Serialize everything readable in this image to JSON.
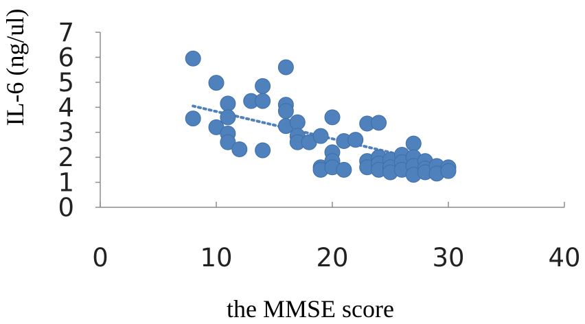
{
  "chart_data": {
    "type": "scatter",
    "title": "",
    "xlabel": "the MMSE score",
    "ylabel": "IL-6 (ng/ul)",
    "xlim": [
      0,
      40
    ],
    "ylim": [
      0,
      7
    ],
    "x_ticks": [
      "0",
      "10",
      "20",
      "30",
      "40"
    ],
    "y_ticks": [
      "0",
      "1",
      "2",
      "3",
      "4",
      "5",
      "6",
      "7"
    ],
    "grid": false,
    "legend": "none",
    "marker_color": "#4f81bd",
    "trendline": {
      "style": "dotted",
      "color": "#4f81bd",
      "from": [
        8,
        4.05
      ],
      "to": [
        30,
        1.65
      ]
    },
    "series": [
      {
        "points": [
          [
            8,
            5.95
          ],
          [
            8,
            3.55
          ],
          [
            10,
            4.98
          ],
          [
            10,
            3.2
          ],
          [
            11,
            4.15
          ],
          [
            11,
            3.6
          ],
          [
            11,
            2.95
          ],
          [
            11,
            2.6
          ],
          [
            12,
            2.32
          ],
          [
            13,
            4.25
          ],
          [
            14,
            4.85
          ],
          [
            14,
            4.25
          ],
          [
            14,
            2.28
          ],
          [
            16,
            5.6
          ],
          [
            16,
            4.1
          ],
          [
            16,
            3.85
          ],
          [
            16,
            3.25
          ],
          [
            17,
            3.4
          ],
          [
            17,
            2.85
          ],
          [
            17,
            2.6
          ],
          [
            18,
            2.6
          ],
          [
            19,
            2.85
          ],
          [
            19,
            1.6
          ],
          [
            19,
            1.5
          ],
          [
            20,
            3.6
          ],
          [
            20,
            2.2
          ],
          [
            20,
            1.85
          ],
          [
            20,
            1.6
          ],
          [
            21,
            2.65
          ],
          [
            21,
            1.5
          ],
          [
            22,
            2.7
          ],
          [
            23,
            3.35
          ],
          [
            23,
            1.85
          ],
          [
            23,
            1.6
          ],
          [
            24,
            3.38
          ],
          [
            24,
            2.0
          ],
          [
            24,
            1.75
          ],
          [
            24,
            1.5
          ],
          [
            25,
            1.9
          ],
          [
            25,
            1.6
          ],
          [
            25,
            1.4
          ],
          [
            26,
            2.1
          ],
          [
            26,
            1.8
          ],
          [
            26,
            1.5
          ],
          [
            27,
            2.55
          ],
          [
            27,
            2.0
          ],
          [
            27,
            1.65
          ],
          [
            27,
            1.3
          ],
          [
            28,
            1.85
          ],
          [
            28,
            1.55
          ],
          [
            28,
            1.4
          ],
          [
            29,
            1.65
          ],
          [
            29,
            1.35
          ],
          [
            30,
            1.6
          ],
          [
            30,
            1.45
          ]
        ]
      }
    ]
  }
}
